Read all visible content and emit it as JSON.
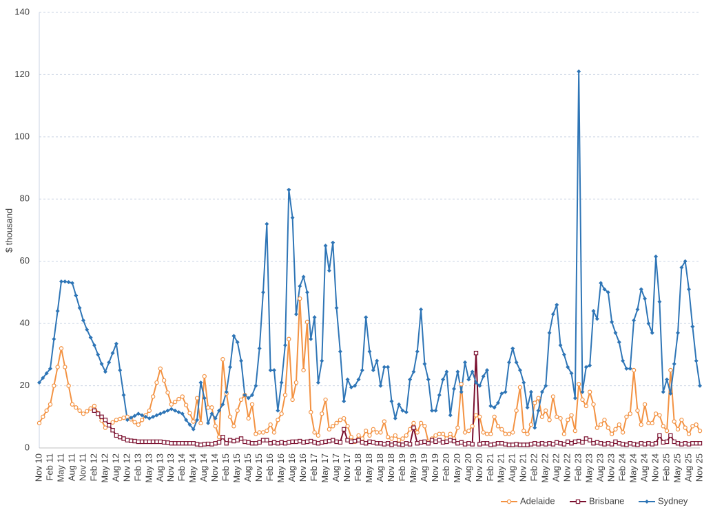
{
  "chart_data": {
    "type": "line",
    "y_label": "$ thousand",
    "legend": "bottom-right",
    "grid": true,
    "ylim": [
      0,
      140
    ],
    "yticks": [
      0,
      20,
      40,
      60,
      80,
      100,
      120,
      140
    ],
    "categories": [
      "Nov 10",
      null,
      null,
      "Feb 11",
      null,
      null,
      "May 11",
      null,
      null,
      "Aug 11",
      null,
      null,
      "Nov 11",
      null,
      null,
      "Feb 12",
      null,
      null,
      "May 12",
      null,
      null,
      "Aug 12",
      null,
      null,
      "Nov 12",
      null,
      null,
      "Feb 13",
      null,
      null,
      "May 13",
      null,
      null,
      "Aug 13",
      null,
      null,
      "Nov 13",
      null,
      null,
      "Feb 14",
      null,
      null,
      "May 14",
      null,
      null,
      "Aug 14",
      null,
      null,
      "Nov 14",
      null,
      null,
      "Feb 15",
      null,
      null,
      "May 15",
      null,
      null,
      "Aug 15",
      null,
      null,
      "Nov 15",
      null,
      null,
      "Feb 16",
      null,
      null,
      "May 16",
      null,
      null,
      "Aug 16",
      null,
      null,
      "Nov 16",
      null,
      null,
      "Feb 17",
      null,
      null,
      "May 17",
      null,
      null,
      "Aug 17",
      null,
      null,
      "Nov 17",
      null,
      null,
      "Feb 18",
      null,
      null,
      "May 18",
      null,
      null,
      "Aug 18",
      null,
      null,
      "Nov 18",
      null,
      null,
      "Feb 19",
      null,
      null,
      "May 19",
      null,
      null,
      "Aug 19",
      null,
      null,
      "Nov 19",
      null,
      null,
      "Feb 20",
      null,
      null,
      "May 20",
      null,
      null,
      "Aug 20",
      null,
      null,
      "Nov 20",
      null,
      null,
      "Feb 21",
      null,
      null,
      "May 21",
      null,
      null,
      "Aug 21",
      null,
      null,
      "Nov 21",
      null,
      null,
      "Feb 22",
      null,
      null,
      "May 22",
      null,
      null,
      "Aug 22",
      null,
      null,
      "Nov 22",
      null,
      null,
      "Feb 23",
      null,
      null,
      "May 23",
      null,
      null,
      "Aug 23",
      null,
      null,
      "Nov 23",
      null,
      null,
      "Feb 24",
      null,
      null,
      "May 24",
      null,
      null,
      "Aug 24",
      null,
      null,
      "Nov 24",
      null,
      null,
      "Feb 25",
      null,
      null,
      "May 25",
      null,
      null,
      "Aug 25",
      null,
      null,
      "Nov 25"
    ],
    "series": [
      {
        "name": "Adelaide",
        "color": "#f39242",
        "marker": "circle",
        "values": [
          8,
          10,
          12,
          14,
          20,
          26,
          32,
          26,
          20,
          14,
          13,
          12,
          11,
          11.8,
          12.7,
          13.5,
          11.2,
          8.8,
          6.5,
          7.3,
          8.2,
          9,
          9.3,
          9.7,
          10,
          9.2,
          8.3,
          7.5,
          9,
          10.5,
          12,
          16.5,
          21,
          25.5,
          21.7,
          17.8,
          14,
          14.8,
          15.7,
          16.5,
          13.8,
          11.2,
          8.5,
          16,
          8,
          23,
          13,
          13,
          7,
          3.5,
          28.5,
          17.5,
          10,
          7,
          12,
          15.5,
          17,
          9.5,
          14,
          4.5,
          5,
          5,
          5.5,
          7.5,
          5,
          9,
          11,
          17,
          35,
          15.5,
          21,
          48,
          25,
          40.5,
          11.5,
          5,
          4,
          11,
          15.5,
          6,
          7,
          8,
          9,
          9.5,
          7,
          3.5,
          2,
          4,
          3,
          5.5,
          4,
          6,
          5,
          5,
          8.5,
          3.5,
          3,
          4,
          2.5,
          3,
          4,
          6,
          8,
          5,
          8,
          7,
          2,
          3,
          4,
          4.5,
          4.5,
          3,
          4.5,
          3,
          6.5,
          20.5,
          5,
          5.5,
          7,
          10.5,
          10,
          5,
          4.5,
          4.5,
          10,
          7,
          6,
          4.5,
          4.5,
          5,
          12,
          19.5,
          5.5,
          4.5,
          7.5,
          14.5,
          16,
          10,
          12,
          9,
          16.5,
          10,
          9.5,
          4.5,
          9,
          10.5,
          5.5,
          20.5,
          15.5,
          13.5,
          18,
          14,
          6.5,
          7.5,
          9,
          6.5,
          4.5,
          6,
          7.5,
          5,
          10,
          11,
          25,
          12,
          7.5,
          14,
          8,
          8,
          11,
          10.5,
          7,
          5.5,
          25,
          8.5,
          6,
          9,
          6.5,
          4.5,
          7,
          7.5,
          5.5
        ]
      },
      {
        "name": "Brisbane",
        "color": "#7a0f2e",
        "marker": "square",
        "values": [
          null,
          null,
          null,
          null,
          null,
          null,
          null,
          null,
          null,
          null,
          null,
          null,
          null,
          null,
          null,
          12,
          11,
          10,
          9,
          7.3,
          5.7,
          4,
          3.5,
          3,
          2.5,
          2.3,
          2.2,
          2,
          2,
          2,
          2,
          2,
          2,
          2,
          1.8,
          1.7,
          1.5,
          1.5,
          1.5,
          1.5,
          1.5,
          1.5,
          1.5,
          1.2,
          1,
          1.2,
          1.3,
          1.2,
          1.5,
          1.8,
          3.5,
          1.5,
          2.5,
          2.2,
          2.5,
          3,
          2,
          1.8,
          1.5,
          1.5,
          1.8,
          2.5,
          2.5,
          1.5,
          1.8,
          1.5,
          1.8,
          1.5,
          1.8,
          2,
          2,
          2.2,
          1.8,
          2,
          2.2,
          1.8,
          1.5,
          1.8,
          2,
          2.2,
          2.5,
          2,
          1.8,
          6,
          2.5,
          2,
          2.2,
          2.5,
          1.8,
          1.5,
          2,
          1.8,
          1.5,
          1.5,
          1.2,
          1.5,
          1,
          1.5,
          1.2,
          1,
          1.5,
          1.2,
          6.5,
          1.5,
          1.8,
          2,
          1.5,
          2.5,
          2,
          2.5,
          1.8,
          2,
          2.5,
          2.2,
          1.5,
          1.8,
          1.2,
          1.5,
          1.2,
          30.5,
          1.2,
          1.5,
          1.5,
          1,
          1.2,
          1.5,
          1.5,
          1.2,
          1,
          1,
          1.2,
          1,
          1,
          1,
          1.2,
          1.5,
          1.2,
          1.5,
          1.2,
          1.5,
          1.2,
          1.8,
          1.5,
          1.2,
          2,
          1.5,
          2,
          2.2,
          1.8,
          3,
          2.5,
          1.5,
          1.8,
          1.5,
          1.2,
          1.5,
          1.2,
          2,
          1.5,
          1.2,
          1,
          1.5,
          1.2,
          1,
          1.5,
          1.2,
          1.5,
          1.2,
          1.5,
          4,
          1.8,
          2,
          4,
          2,
          1.5,
          1.2,
          1.5,
          1.2,
          1.5,
          1.5,
          1.5
        ]
      },
      {
        "name": "Sydney",
        "color": "#2e75b6",
        "marker": "diamond",
        "values": [
          21,
          22.5,
          24,
          25.5,
          35,
          44,
          53.5,
          53.5,
          53.3,
          53,
          49,
          45,
          41,
          38,
          35.5,
          33,
          30,
          27,
          24.5,
          27.5,
          30.5,
          33.5,
          25,
          17,
          9,
          9.7,
          10.3,
          11,
          10.5,
          10,
          9.5,
          10,
          10.5,
          11,
          11.5,
          12,
          12.5,
          12,
          11.5,
          11,
          9,
          7.5,
          6,
          9,
          21,
          16,
          8,
          11,
          9.5,
          12,
          14,
          18,
          26,
          36,
          34,
          28,
          17,
          16,
          17,
          20,
          32,
          50,
          72,
          25,
          25,
          12,
          21,
          33,
          83,
          74,
          43,
          52,
          55,
          50,
          35,
          42,
          21,
          28,
          65,
          57,
          66,
          45,
          31,
          15,
          22,
          19.5,
          20,
          22,
          25,
          42,
          31,
          25,
          28,
          20,
          26,
          26,
          15,
          9.5,
          14,
          12,
          11.5,
          22,
          24.5,
          31,
          44.5,
          27,
          22,
          12,
          12,
          17,
          22,
          24.5,
          10.5,
          19,
          24.5,
          18,
          27.5,
          22,
          24.5,
          21,
          20,
          23,
          25,
          13.5,
          13,
          14.5,
          17.5,
          18,
          27.5,
          32,
          27.5,
          25,
          21,
          13,
          18,
          6.5,
          12,
          18,
          20,
          37,
          43,
          46,
          33,
          30,
          26,
          24,
          16,
          121,
          18,
          26,
          26.5,
          44,
          41.5,
          53,
          51,
          50,
          40.5,
          37,
          34,
          28,
          25.5,
          25.5,
          41,
          44.5,
          51,
          48,
          40,
          37,
          61.5,
          47,
          18,
          22,
          17.5,
          27,
          37,
          58,
          60,
          51,
          39,
          28,
          20
        ]
      }
    ]
  }
}
